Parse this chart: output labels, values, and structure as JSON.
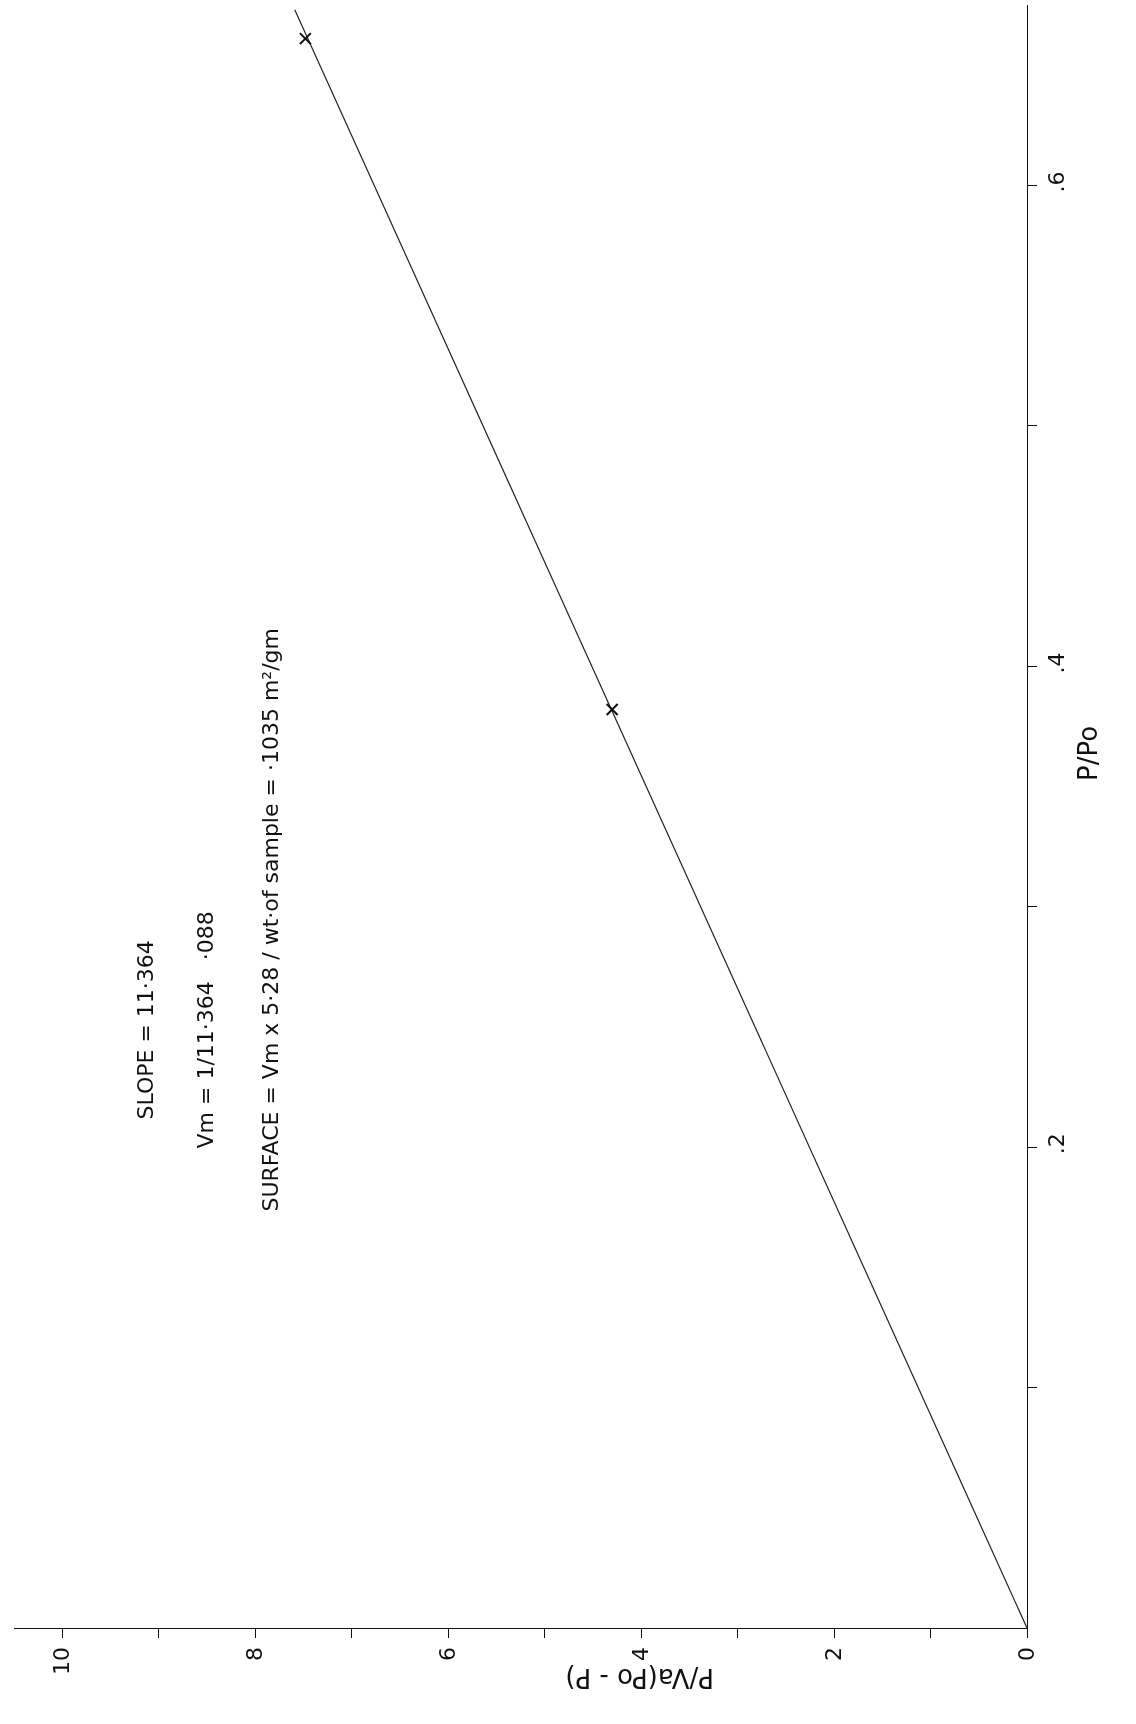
{
  "chart_data": {
    "type": "scatter",
    "xlabel": "P/Va(Po - P)",
    "ylabel": "P/Po",
    "xlim": [
      10.5,
      0
    ],
    "ylim": [
      0,
      0.675
    ],
    "xticks": [
      0,
      {
        "value": 1,
        "label": null
      },
      2,
      {
        "value": 3,
        "label": null
      },
      4,
      {
        "value": 5,
        "label": null
      },
      6,
      {
        "value": 7,
        "label": null
      },
      8,
      {
        "value": 9,
        "label": null
      },
      10
    ],
    "yticks": [
      {
        "value": 0.1,
        "label": null
      },
      {
        "value": 0.2,
        "label": ".2"
      },
      {
        "value": 0.3,
        "label": null
      },
      {
        "value": 0.4,
        "label": ".4"
      },
      {
        "value": 0.5,
        "label": null
      },
      {
        "value": 0.6,
        "label": ".6"
      }
    ],
    "series": [
      {
        "type": "line",
        "color": "#222222",
        "x": [
          0,
          7.59
        ],
        "values": [
          0,
          0.673
        ],
        "marker": "none",
        "line_style": "solid"
      },
      {
        "color": "#111111",
        "x": [
          4.3,
          7.48
        ],
        "values": [
          0.382,
          0.661
        ],
        "marker": "cross"
      }
    ],
    "annotations": [
      "SLOPE = 11·364",
      "Vm = 1/11·364   ·088",
      "SURFACE = Vm x 5·28 / wt·of sample = ·1035 m²/gm"
    ]
  }
}
